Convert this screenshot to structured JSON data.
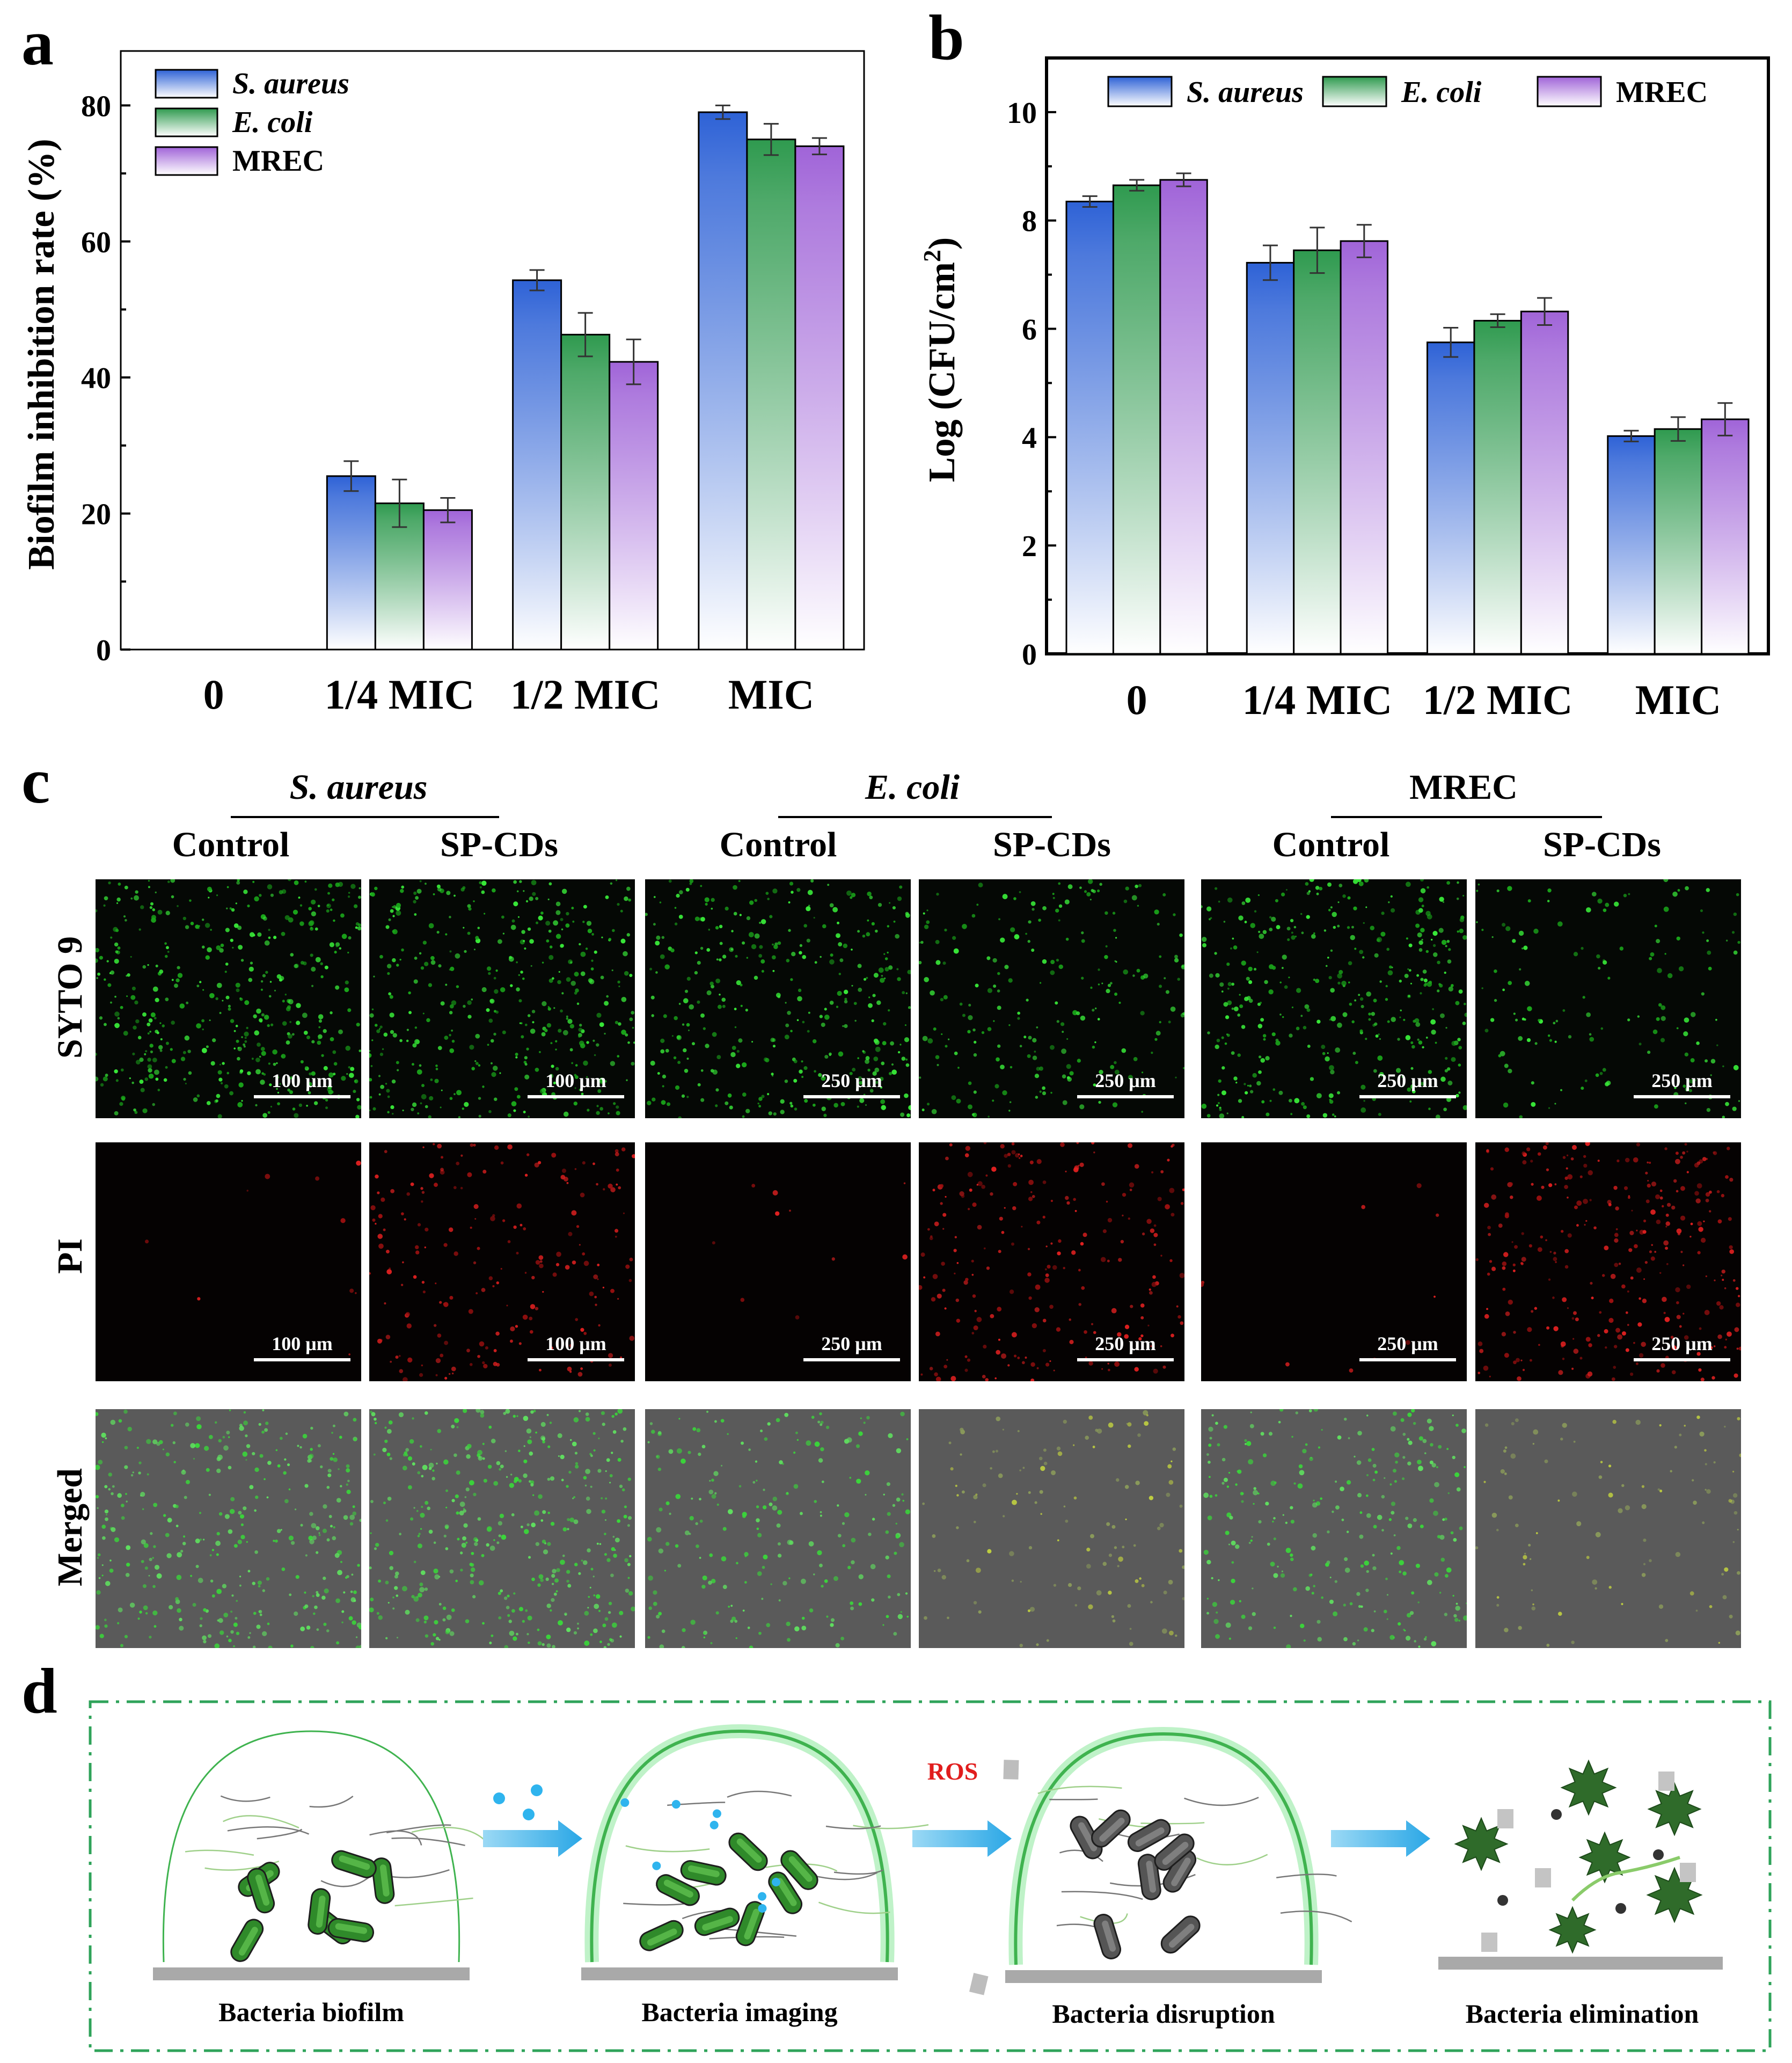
{
  "panel_labels": {
    "a": "a",
    "b": "b",
    "c": "c",
    "d": "d"
  },
  "colors": {
    "s_aureus": "#2e62d6",
    "e_coli": "#2f9a4f",
    "mrec": "#a064d8",
    "error_bar": "#333333",
    "diagram_border": "#2fa35a",
    "arrow": "#2aa7e6",
    "ros": "#e11d1d"
  },
  "chart_data": [
    {
      "type": "bar",
      "title": "",
      "xlabel": "",
      "ylabel": "Biofilm inhibition rate (%)",
      "categories": [
        "0",
        "1/4 MIC",
        "1/2 MIC",
        "MIC"
      ],
      "ylim": [
        0,
        88
      ],
      "yticks": [
        0,
        20,
        40,
        60,
        80
      ],
      "legend_position": "top-left",
      "series": [
        {
          "name": "S. aureus",
          "values": [
            0,
            25.5,
            54.3,
            79.0
          ],
          "errors": [
            0,
            2.2,
            1.5,
            1.0
          ]
        },
        {
          "name": "E. coli",
          "values": [
            0,
            21.5,
            46.3,
            75.0
          ],
          "errors": [
            0,
            3.5,
            3.2,
            2.3
          ]
        },
        {
          "name": "MREC",
          "values": [
            0,
            20.5,
            42.3,
            74.0
          ],
          "errors": [
            0,
            1.8,
            3.3,
            1.2
          ]
        }
      ]
    },
    {
      "type": "bar",
      "title": "",
      "xlabel": "",
      "ylabel": "Log (CFU/cm",
      "ylabel_sup": "2",
      "ylabel_close": ")",
      "categories": [
        "0",
        "1/4 MIC",
        "1/2 MIC",
        "MIC"
      ],
      "ylim": [
        0,
        11
      ],
      "yticks": [
        0,
        2,
        4,
        6,
        8,
        10
      ],
      "legend_position": "top",
      "series": [
        {
          "name": "S. aureus",
          "values": [
            8.35,
            7.22,
            5.75,
            4.02
          ],
          "errors": [
            0.1,
            0.32,
            0.27,
            0.1
          ]
        },
        {
          "name": "E. coli",
          "values": [
            8.65,
            7.45,
            6.15,
            4.15
          ],
          "errors": [
            0.1,
            0.42,
            0.12,
            0.22
          ]
        },
        {
          "name": "MREC",
          "values": [
            8.75,
            7.62,
            6.32,
            4.33
          ],
          "errors": [
            0.12,
            0.3,
            0.25,
            0.3
          ]
        }
      ]
    }
  ],
  "microscopy": {
    "groups": [
      "S. aureus",
      "E. coli",
      "MREC"
    ],
    "columns": [
      "Control",
      "SP-CDs",
      "Control",
      "SP-CDs",
      "Control",
      "SP-CDs"
    ],
    "rows": [
      "SYTO 9",
      "PI",
      "Merged"
    ],
    "scale_bars": [
      "100 μm",
      "100 μm",
      "250 μm",
      "250 μm",
      "250 μm",
      "250 μm"
    ]
  },
  "diagram": {
    "stages": [
      "Bacteria biofilm",
      "Bacteria imaging",
      "Bacteria disruption",
      "Bacteria elimination"
    ],
    "ros_label": "ROS"
  }
}
